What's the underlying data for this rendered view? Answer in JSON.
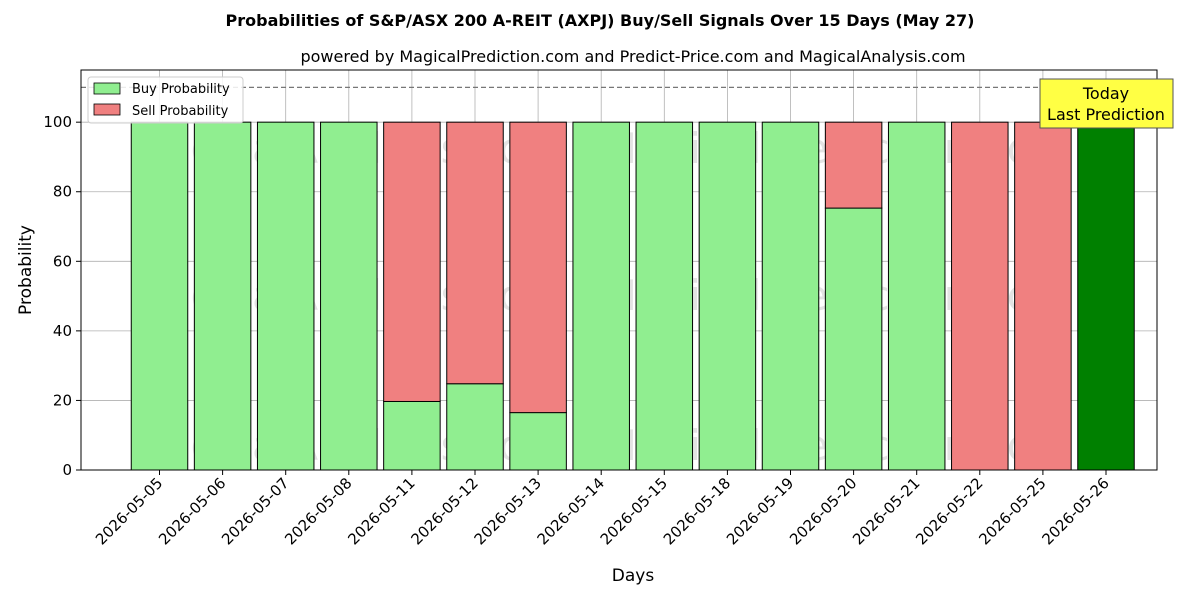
{
  "chart_data": {
    "type": "bar",
    "stacked": true,
    "title": "Probabilities of S&P/ASX 200 A-REIT (AXPJ) Buy/Sell Signals Over 15 Days (May 27)",
    "subtitle": "powered by MagicalPrediction.com and Predict-Price.com and MagicalAnalysis.com",
    "xlabel": "Days",
    "ylabel": "Probability",
    "ylim": [
      0,
      115
    ],
    "yticks": [
      0,
      20,
      40,
      60,
      80,
      100
    ],
    "grid": true,
    "legend_position": "top-left",
    "reference_line": 110,
    "categories": [
      "2026-05-05",
      "2026-05-06",
      "2026-05-07",
      "2026-05-08",
      "2026-05-11",
      "2026-05-12",
      "2026-05-13",
      "2026-05-14",
      "2026-05-15",
      "2026-05-18",
      "2026-05-19",
      "2026-05-20",
      "2026-05-21",
      "2026-05-22",
      "2026-05-25",
      "2026-05-26"
    ],
    "series": [
      {
        "name": "Buy Probability",
        "color": "#90ee90",
        "values": [
          100,
          100,
          100,
          100,
          19.7,
          24.8,
          16.5,
          100,
          100,
          100,
          100,
          75.3,
          100,
          0,
          0,
          100
        ]
      },
      {
        "name": "Sell Probability",
        "color": "#f08080",
        "values": [
          0,
          0,
          0,
          0,
          80.3,
          75.2,
          83.5,
          0,
          0,
          0,
          0,
          24.7,
          0,
          100,
          100,
          0
        ]
      }
    ],
    "highlight": {
      "category": "2026-05-26",
      "color": "#008000"
    },
    "annotation": {
      "lines": [
        "Today",
        "Last Prediction"
      ],
      "color": "#ffff44"
    },
    "watermarks": [
      "MagicalAnalysis.com",
      "MagicalPrediction.com"
    ]
  }
}
